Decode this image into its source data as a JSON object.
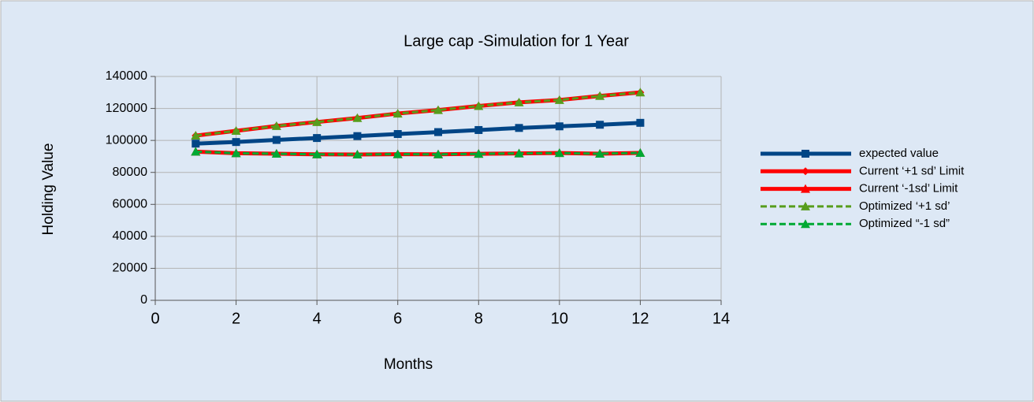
{
  "chart_data": {
    "type": "line",
    "title": "Large cap -Simulation for  1 Year",
    "x_label": "Months",
    "y_label": "Holding Value",
    "xlim": [
      0,
      14
    ],
    "xticks": [
      0,
      2,
      4,
      6,
      8,
      10,
      12,
      14
    ],
    "ylim": [
      0,
      140000
    ],
    "yticks": [
      0,
      20000,
      40000,
      60000,
      80000,
      100000,
      120000,
      140000
    ],
    "grid": true,
    "legend": "right",
    "x": [
      1,
      2,
      3,
      4,
      5,
      6,
      7,
      8,
      9,
      10,
      11,
      12
    ],
    "series": [
      {
        "name": "expected value",
        "color": "#004586",
        "marker": "square",
        "dash": "solid",
        "values": [
          98000,
          99000,
          100300,
          101500,
          102700,
          104000,
          105200,
          106500,
          107800,
          108800,
          109800,
          111000
        ]
      },
      {
        "name": "Current ‘+1 sd’ Limit",
        "color": "#ff0000",
        "marker": "diamond",
        "dash": "solid",
        "values": [
          103000,
          106000,
          109000,
          111500,
          114000,
          116800,
          119000,
          121500,
          123800,
          125300,
          127800,
          130000
        ]
      },
      {
        "name": "Current ‘-1sd’ Limit",
        "color": "#ff0000",
        "marker": "triangle",
        "dash": "solid",
        "values": [
          93000,
          92000,
          91700,
          91300,
          91200,
          91400,
          91300,
          91600,
          91900,
          92100,
          91700,
          92200
        ]
      },
      {
        "name": "Optimized ‘+1 sd’",
        "color": "#579d1c",
        "marker": "triangle",
        "dash": "dashed",
        "values": [
          103000,
          106000,
          109000,
          111500,
          114000,
          116800,
          119000,
          121500,
          123800,
          125300,
          127800,
          130000
        ]
      },
      {
        "name": "Optimized  “-1 sd”",
        "color": "#00a933",
        "marker": "triangle",
        "dash": "dashed",
        "values": [
          93000,
          92000,
          91700,
          91300,
          91200,
          91400,
          91300,
          91600,
          91900,
          92100,
          91700,
          92200
        ]
      }
    ]
  }
}
